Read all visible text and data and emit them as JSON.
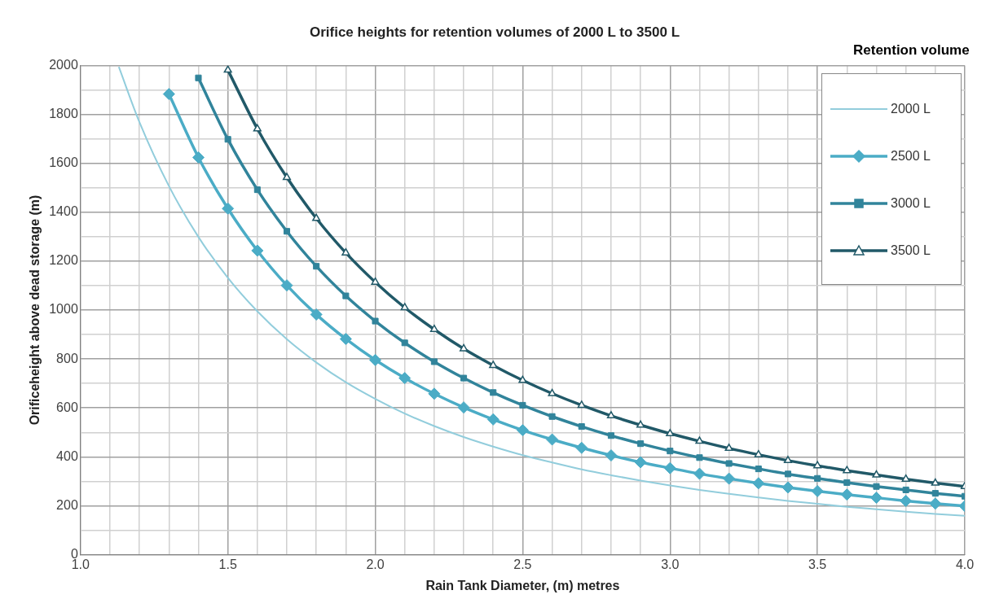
{
  "chart_data": {
    "type": "line",
    "title": "Orifice heights for retention volumes of 2000 L to 3500 L",
    "xlabel": "Rain Tank Diameter, (m) metres",
    "ylabel": "Orificeheight above dead storage (m)",
    "legend_title": "Retention volume",
    "legend": "top right",
    "grid": true,
    "line_style": "solid",
    "xlim": [
      1.0,
      4.0
    ],
    "ylim": [
      0,
      2000
    ],
    "xticks": [
      {
        "value": 1.0,
        "label": "1.0"
      },
      {
        "value": 1.1,
        "label": null
      },
      {
        "value": 1.2,
        "label": null
      },
      {
        "value": 1.3,
        "label": null
      },
      {
        "value": 1.4,
        "label": null
      },
      {
        "value": 1.5,
        "label": "1.5"
      },
      {
        "value": 1.6,
        "label": null
      },
      {
        "value": 1.7,
        "label": null
      },
      {
        "value": 1.8,
        "label": null
      },
      {
        "value": 1.9,
        "label": null
      },
      {
        "value": 2.0,
        "label": "2.0"
      },
      {
        "value": 2.1,
        "label": null
      },
      {
        "value": 2.2,
        "label": null
      },
      {
        "value": 2.3,
        "label": null
      },
      {
        "value": 2.4,
        "label": null
      },
      2.5,
      {
        "value": 2.6,
        "label": null
      },
      {
        "value": 2.7,
        "label": null
      },
      {
        "value": 2.8,
        "label": null
      },
      {
        "value": 2.9,
        "label": null
      },
      {
        "value": 3.0,
        "label": "3.0"
      },
      {
        "value": 3.1,
        "label": null
      },
      {
        "value": 3.2,
        "label": null
      },
      {
        "value": 3.3,
        "label": null
      },
      {
        "value": 3.4,
        "label": null
      },
      3.5,
      {
        "value": 3.6,
        "label": null
      },
      {
        "value": 3.7,
        "label": null
      },
      {
        "value": 3.8,
        "label": null
      },
      {
        "value": 3.9,
        "label": null
      },
      {
        "value": 4.0,
        "label": "4.0"
      }
    ],
    "yticks": [
      0,
      {
        "value": 100,
        "label": null
      },
      200,
      {
        "value": 300,
        "label": null
      },
      400,
      {
        "value": 500,
        "label": null
      },
      600,
      {
        "value": 700,
        "label": null
      },
      800,
      {
        "value": 900,
        "label": null
      },
      1000,
      {
        "value": 1100,
        "label": null
      },
      1200,
      {
        "value": 1300,
        "label": null
      },
      1400,
      {
        "value": 1500,
        "label": null
      },
      1600,
      {
        "value": 1700,
        "label": null
      },
      1800,
      {
        "value": 1900,
        "label": null
      },
      2000
    ],
    "series": [
      {
        "name": "2000 L",
        "color": "#92cddc",
        "marker": "none",
        "x": [
          1.13,
          1.2,
          1.3,
          1.4,
          1.5,
          1.6,
          1.7,
          1.8,
          1.9,
          2.0,
          2.1,
          2.2,
          2.3,
          2.4,
          2.5,
          2.6,
          2.7,
          2.8,
          2.9,
          3.0,
          3.1,
          3.2,
          3.3,
          3.4,
          3.5,
          3.6,
          3.7,
          3.8,
          3.9,
          4.0
        ],
        "values": [
          1994,
          1768,
          1507,
          1299,
          1132,
          995,
          881,
          786,
          705,
          637,
          577,
          526,
          481,
          442,
          407,
          377,
          349,
          325,
          303,
          283,
          265,
          249,
          234,
          220,
          208,
          196,
          186,
          176,
          167,
          159
        ]
      },
      {
        "name": "2500 L",
        "color": "#4bacc6",
        "marker": "diamond",
        "x": [
          1.3,
          1.4,
          1.5,
          1.6,
          1.7,
          1.8,
          1.9,
          2.0,
          2.1,
          2.2,
          2.3,
          2.4,
          2.5,
          2.6,
          2.7,
          2.8,
          2.9,
          3.0,
          3.1,
          3.2,
          3.3,
          3.4,
          3.5,
          3.6,
          3.7,
          3.8,
          3.9,
          4.0
        ],
        "values": [
          1883,
          1624,
          1415,
          1243,
          1101,
          982,
          882,
          796,
          722,
          658,
          602,
          553,
          509,
          471,
          437,
          406,
          378,
          354,
          331,
          311,
          292,
          275,
          260,
          246,
          233,
          220,
          209,
          199
        ]
      },
      {
        "name": "3000 L",
        "color": "#31849b",
        "marker": "square",
        "x": [
          1.4,
          1.5,
          1.6,
          1.7,
          1.8,
          1.9,
          2.0,
          2.1,
          2.2,
          2.3,
          2.4,
          2.5,
          2.6,
          2.7,
          2.8,
          2.9,
          3.0,
          3.1,
          3.2,
          3.3,
          3.4,
          3.5,
          3.6,
          3.7,
          3.8,
          3.9,
          4.0
        ],
        "values": [
          1949,
          1698,
          1492,
          1322,
          1179,
          1058,
          955,
          866,
          789,
          722,
          663,
          611,
          565,
          524,
          487,
          454,
          424,
          397,
          373,
          351,
          330,
          312,
          295,
          279,
          265,
          251,
          239
        ]
      },
      {
        "name": "3500 L",
        "color": "#215968",
        "marker": "triangle",
        "x": [
          1.5,
          1.6,
          1.7,
          1.8,
          1.9,
          2.0,
          2.1,
          2.2,
          2.3,
          2.4,
          2.5,
          2.6,
          2.7,
          2.8,
          2.9,
          3.0,
          3.1,
          3.2,
          3.3,
          3.4,
          3.5,
          3.6,
          3.7,
          3.8,
          3.9,
          4.0
        ],
        "values": [
          1981,
          1741,
          1542,
          1375,
          1234,
          1114,
          1010,
          921,
          842,
          774,
          713,
          659,
          611,
          568,
          530,
          495,
          464,
          435,
          409,
          385,
          364,
          344,
          326,
          309,
          293,
          279
        ]
      }
    ]
  }
}
